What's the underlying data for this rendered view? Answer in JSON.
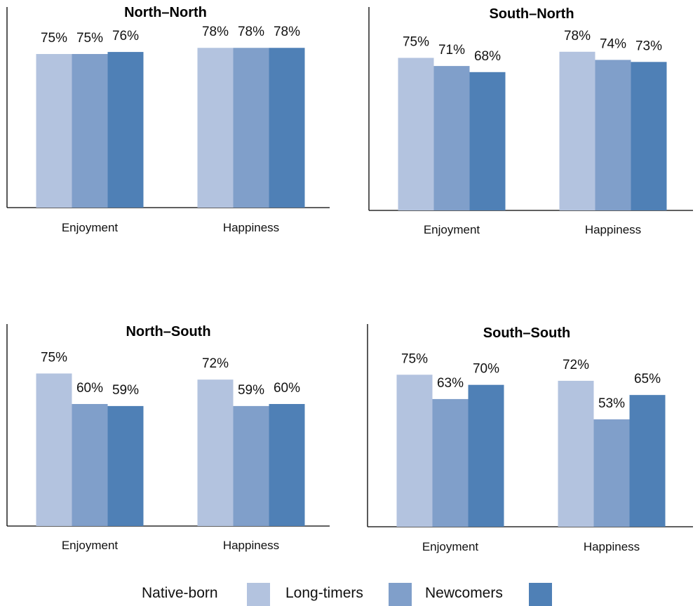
{
  "chart_data": [
    {
      "type": "bar",
      "title": "North–North",
      "categories": [
        "Enjoyment",
        "Happiness"
      ],
      "series": [
        {
          "name": "Native-born",
          "values": [
            75,
            78
          ],
          "labels": [
            "75%",
            "78%"
          ]
        },
        {
          "name": "Long-timers",
          "values": [
            75,
            78
          ],
          "labels": [
            "75%",
            "78%"
          ]
        },
        {
          "name": "Newcomers",
          "values": [
            76,
            78
          ],
          "labels": [
            "76%",
            "78%"
          ]
        }
      ],
      "ylim": [
        0,
        100
      ],
      "grid": false
    },
    {
      "type": "bar",
      "title": "South–North",
      "categories": [
        "Enjoyment",
        "Happiness"
      ],
      "series": [
        {
          "name": "Native-born",
          "values": [
            75,
            78
          ],
          "labels": [
            "75%",
            "78%"
          ]
        },
        {
          "name": "Long-timers",
          "values": [
            71,
            74
          ],
          "labels": [
            "71%",
            "74%"
          ]
        },
        {
          "name": "Newcomers",
          "values": [
            68,
            73
          ],
          "labels": [
            "68%",
            "73%"
          ]
        }
      ],
      "ylim": [
        0,
        100
      ],
      "grid": false
    },
    {
      "type": "bar",
      "title": "North–South",
      "categories": [
        "Enjoyment",
        "Happiness"
      ],
      "series": [
        {
          "name": "Native-born",
          "values": [
            75,
            72
          ],
          "labels": [
            "75%",
            "72%"
          ]
        },
        {
          "name": "Long-timers",
          "values": [
            60,
            59
          ],
          "labels": [
            "60%",
            "59%"
          ]
        },
        {
          "name": "Newcomers",
          "values": [
            59,
            60
          ],
          "labels": [
            "59%",
            "60%"
          ]
        }
      ],
      "ylim": [
        0,
        100
      ],
      "grid": false
    },
    {
      "type": "bar",
      "title": "South–South",
      "categories": [
        "Enjoyment",
        "Happiness"
      ],
      "series": [
        {
          "name": "Native-born",
          "values": [
            75,
            72
          ],
          "labels": [
            "75%",
            "72%"
          ]
        },
        {
          "name": "Long-timers",
          "values": [
            63,
            53
          ],
          "labels": [
            "63%",
            "53%"
          ]
        },
        {
          "name": "Newcomers",
          "values": [
            70,
            65
          ],
          "labels": [
            "70%",
            "65%"
          ]
        }
      ],
      "ylim": [
        0,
        100
      ],
      "grid": false
    }
  ],
  "legend": {
    "placement": "bottom",
    "items": [
      {
        "label": "Native-born",
        "color": "#b3c3df"
      },
      {
        "label": "Long-timers",
        "color": "#809fca"
      },
      {
        "label": "Newcomers",
        "color": "#4f80b6"
      }
    ]
  }
}
